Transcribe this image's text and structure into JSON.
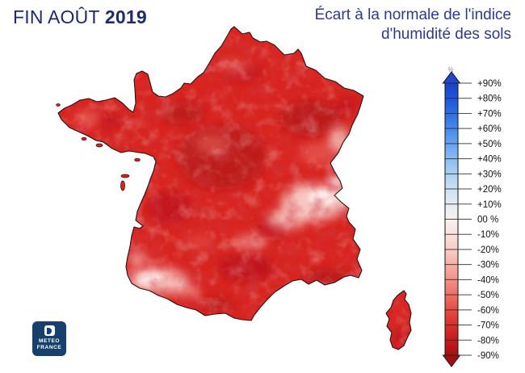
{
  "header": {
    "period_label": "FIN AOÛT",
    "period_year": "2019",
    "title_line1": "Écart à la normale de l'indice",
    "title_line2": "d'humidité des sols"
  },
  "legend": {
    "unit": "%",
    "labels": [
      "+90%",
      "+80%",
      "+70%",
      "+60%",
      "+50%",
      "+40%",
      "+30%",
      "+20%",
      "+10%",
      "00 %",
      "-10%",
      "-20%",
      "-30%",
      "-40%",
      "-50%",
      "-60%",
      "-70%",
      "-80%",
      "-90%"
    ],
    "stop_colors": [
      "#1840c8",
      "#1e55d8",
      "#2e6ee2",
      "#4789ea",
      "#66a3ee",
      "#8abcf1",
      "#accff3",
      "#cce0f2",
      "#e4ecf2",
      "#f6f2f0",
      "#f9e1dd",
      "#f8ccc6",
      "#f5b0a9",
      "#f1918a",
      "#ec6f67",
      "#e44c44",
      "#d8302a",
      "#c41c1e",
      "#a60f15"
    ],
    "top_arrow_color": "#2147cd",
    "bottom_arrow_color": "#a30e14"
  },
  "map": {
    "base_color": "#d8241f",
    "dark_anomaly_color": "#a50e13",
    "light_red_color": "#f07166",
    "pale_anomaly_color": "#fbd7d2",
    "near_white_color": "#fdeeec",
    "outline_color": "#2a1010"
  },
  "logo": {
    "line1": "METEO",
    "line2": "FRANCE",
    "bg_color": "#17406d"
  },
  "colors": {
    "title_navy": "#1e2a6e",
    "subtitle_blue": "#2c3a8f"
  }
}
